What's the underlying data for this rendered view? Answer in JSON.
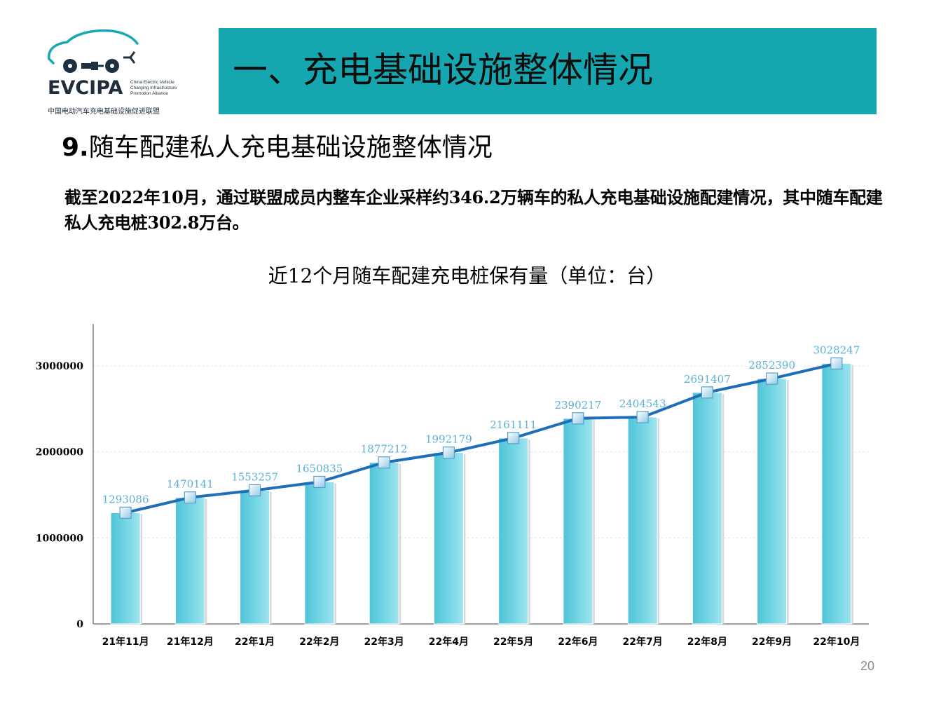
{
  "logo": {
    "wordmark": "EVCIPA",
    "subtitle_en": "China Electric Vehicle Charging Infrastructure Promotion Alliance",
    "name_cn": "中国电动汽车充电基础设施促进联盟"
  },
  "header": {
    "title": "一、充电基础设施整体情况"
  },
  "section": {
    "number": "9.",
    "title": "随车配建私人充电基础设施整体情况"
  },
  "intro_text": "截至2022年10月，通过联盟成员内整车企业采样约346.2万辆车的私人充电基础设施配建情况，其中随车配建私人充电桩302.8万台。",
  "page_number": "20",
  "colors": {
    "banner": "#16a6b0",
    "bar": "#6ed3e3",
    "line": "#1f6fb8",
    "data_label": "#5bb0d8"
  },
  "chart_data": {
    "type": "bar",
    "title": "近12个月随车配建充电桩保有量（单位：台）",
    "categories": [
      "21年11月",
      "21年12月",
      "22年1月",
      "22年2月",
      "22年3月",
      "22年4月",
      "22年5月",
      "22年6月",
      "22年7月",
      "22年8月",
      "22年9月",
      "22年10月"
    ],
    "values": [
      1293086,
      1470141,
      1553257,
      1650835,
      1877212,
      1992179,
      2161111,
      2390217,
      2404543,
      2691407,
      2852390,
      3028247
    ],
    "data_labels": [
      "1293086",
      "1470141",
      "1553257",
      "1650835",
      "1877212",
      "1992179",
      "2161111",
      "2390217",
      "2404543",
      "2691407",
      "2852390",
      "3028247"
    ],
    "overlay": "line with square markers over bars",
    "ylim": [
      0,
      3500000
    ],
    "yticks": [
      0,
      1000000,
      2000000,
      3000000
    ],
    "ytick_labels": [
      "0",
      "1000000",
      "2000000",
      "3000000"
    ],
    "grid": true,
    "legend": "none"
  }
}
